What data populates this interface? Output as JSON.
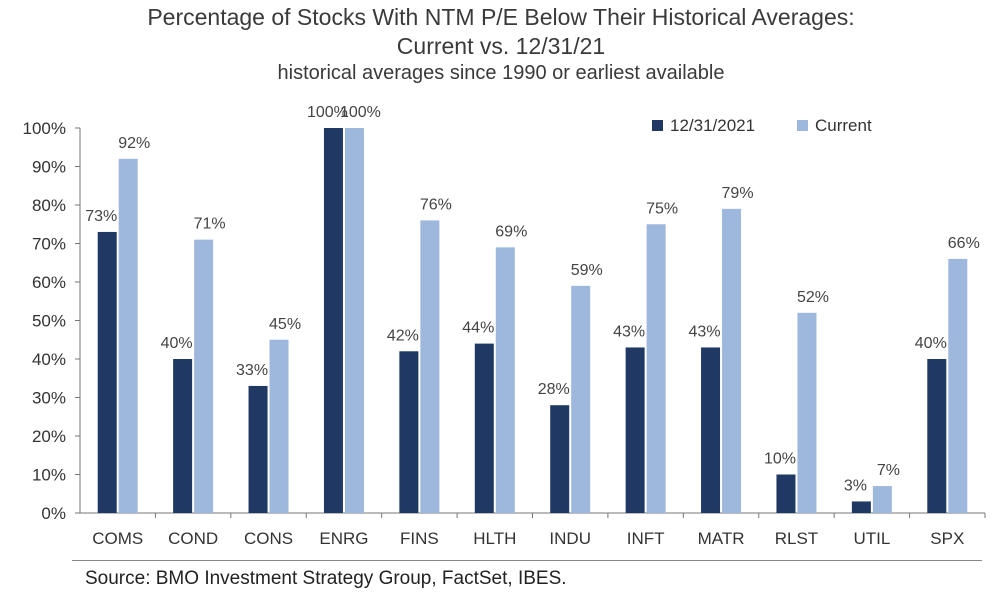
{
  "chart_data": {
    "type": "bar",
    "title_line1": "Percentage of Stocks With NTM P/E Below Their Historical Averages:",
    "title_line2": "Current vs. 12/31/21",
    "subtitle": "historical averages since 1990 or earliest available",
    "categories": [
      "COMS",
      "COND",
      "CONS",
      "ENRG",
      "FINS",
      "HLTH",
      "INDU",
      "INFT",
      "MATR",
      "RLST",
      "UTIL",
      "SPX"
    ],
    "series": [
      {
        "name": "12/31/2021",
        "color": "#1f3864",
        "values": [
          73,
          40,
          33,
          100,
          42,
          44,
          28,
          43,
          43,
          10,
          3,
          40
        ],
        "labels": [
          "73%",
          "40%",
          "33%",
          "100%",
          "42%",
          "44%",
          "28%",
          "43%",
          "43%",
          "10%",
          "3%",
          "40%"
        ]
      },
      {
        "name": "Current",
        "color": "#9db7dd",
        "values": [
          92,
          71,
          45,
          100,
          76,
          69,
          59,
          75,
          79,
          52,
          7,
          66
        ],
        "labels": [
          "92%",
          "71%",
          "45%",
          "100%",
          "76%",
          "69%",
          "59%",
          "75%",
          "79%",
          "52%",
          "7%",
          "66%"
        ]
      }
    ],
    "yticks": [
      "0%",
      "10%",
      "20%",
      "30%",
      "40%",
      "50%",
      "60%",
      "70%",
      "80%",
      "90%",
      "100%"
    ],
    "ylim": [
      0,
      100
    ],
    "grid": false,
    "legend_position": "top-right"
  },
  "source": "Source: BMO Investment Strategy Group, FactSet, IBES."
}
